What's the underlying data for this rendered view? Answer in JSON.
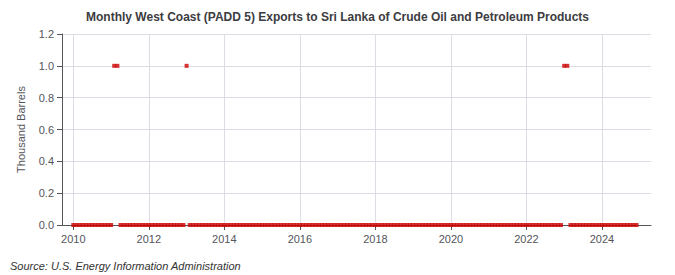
{
  "chart_data": {
    "type": "scatter",
    "title": "Monthly West Coast (PADD 5) Exports to Sri Lanka of Crude Oil and Petroleum Products",
    "ylabel": "Thousand Barrels",
    "annotations": [
      "Source: U.S. Energy Information Administration"
    ],
    "color": "#cc0000",
    "marker": "square",
    "grid": true,
    "xlim": [
      2009.7,
      2025.3
    ],
    "xticks": [
      2010,
      2012,
      2014,
      2016,
      2018,
      2020,
      2022,
      2024
    ],
    "ylim": [
      0,
      1.2
    ],
    "yticks": [
      {
        "value": 0.0,
        "label": "0.0"
      },
      0.2,
      0.4,
      0.6,
      0.8,
      {
        "value": 1.0,
        "label": "1.0"
      },
      1.2
    ],
    "x": [
      2010.0,
      2010.083,
      2010.167,
      2010.25,
      2010.333,
      2010.417,
      2010.5,
      2010.583,
      2010.667,
      2010.75,
      2010.833,
      2010.917,
      2011.0,
      2011.083,
      2011.167,
      2011.25,
      2011.333,
      2011.417,
      2011.5,
      2011.583,
      2011.667,
      2011.75,
      2011.833,
      2011.917,
      2012.0,
      2012.083,
      2012.167,
      2012.25,
      2012.333,
      2012.417,
      2012.5,
      2012.583,
      2012.667,
      2012.75,
      2012.833,
      2012.917,
      2013.0,
      2013.083,
      2013.167,
      2013.25,
      2013.333,
      2013.417,
      2013.5,
      2013.583,
      2013.667,
      2013.75,
      2013.833,
      2013.917,
      2014.0,
      2014.083,
      2014.167,
      2014.25,
      2014.333,
      2014.417,
      2014.5,
      2014.583,
      2014.667,
      2014.75,
      2014.833,
      2014.917,
      2015.0,
      2015.083,
      2015.167,
      2015.25,
      2015.333,
      2015.417,
      2015.5,
      2015.583,
      2015.667,
      2015.75,
      2015.833,
      2015.917,
      2016.0,
      2016.083,
      2016.167,
      2016.25,
      2016.333,
      2016.417,
      2016.5,
      2016.583,
      2016.667,
      2016.75,
      2016.833,
      2016.917,
      2017.0,
      2017.083,
      2017.167,
      2017.25,
      2017.333,
      2017.417,
      2017.5,
      2017.583,
      2017.667,
      2017.75,
      2017.833,
      2017.917,
      2018.0,
      2018.083,
      2018.167,
      2018.25,
      2018.333,
      2018.417,
      2018.5,
      2018.583,
      2018.667,
      2018.75,
      2018.833,
      2018.917,
      2019.0,
      2019.083,
      2019.167,
      2019.25,
      2019.333,
      2019.417,
      2019.5,
      2019.583,
      2019.667,
      2019.75,
      2019.833,
      2019.917,
      2020.0,
      2020.083,
      2020.167,
      2020.25,
      2020.333,
      2020.417,
      2020.5,
      2020.583,
      2020.667,
      2020.75,
      2020.833,
      2020.917,
      2021.0,
      2021.083,
      2021.167,
      2021.25,
      2021.333,
      2021.417,
      2021.5,
      2021.583,
      2021.667,
      2021.75,
      2021.833,
      2021.917,
      2022.0,
      2022.083,
      2022.167,
      2022.25,
      2022.333,
      2022.417,
      2022.5,
      2022.583,
      2022.667,
      2022.75,
      2022.833,
      2022.917,
      2023.0,
      2023.083,
      2023.167,
      2023.25,
      2023.333,
      2023.417,
      2023.5,
      2023.583,
      2023.667,
      2023.75,
      2023.833,
      2023.917,
      2024.0,
      2024.083,
      2024.167,
      2024.25,
      2024.333,
      2024.417,
      2024.5,
      2024.583,
      2024.667,
      2024.75,
      2024.833,
      2024.917
    ],
    "values": [
      0.0,
      0.0,
      0.0,
      0.0,
      0.0,
      0.0,
      0.0,
      0.0,
      0.0,
      0.0,
      0.0,
      0.0,
      0.0,
      1.0,
      1.0,
      0.0,
      0.0,
      0.0,
      0.0,
      0.0,
      0.0,
      0.0,
      0.0,
      0.0,
      0.0,
      0.0,
      0.0,
      0.0,
      0.0,
      0.0,
      0.0,
      0.0,
      0.0,
      0.0,
      0.0,
      0.0,
      1.0,
      0.0,
      0.0,
      0.0,
      0.0,
      0.0,
      0.0,
      0.0,
      0.0,
      0.0,
      0.0,
      0.0,
      0.0,
      0.0,
      0.0,
      0.0,
      0.0,
      0.0,
      0.0,
      0.0,
      0.0,
      0.0,
      0.0,
      0.0,
      0.0,
      0.0,
      0.0,
      0.0,
      0.0,
      0.0,
      0.0,
      0.0,
      0.0,
      0.0,
      0.0,
      0.0,
      0.0,
      0.0,
      0.0,
      0.0,
      0.0,
      0.0,
      0.0,
      0.0,
      0.0,
      0.0,
      0.0,
      0.0,
      0.0,
      0.0,
      0.0,
      0.0,
      0.0,
      0.0,
      0.0,
      0.0,
      0.0,
      0.0,
      0.0,
      0.0,
      0.0,
      0.0,
      0.0,
      0.0,
      0.0,
      0.0,
      0.0,
      0.0,
      0.0,
      0.0,
      0.0,
      0.0,
      0.0,
      0.0,
      0.0,
      0.0,
      0.0,
      0.0,
      0.0,
      0.0,
      0.0,
      0.0,
      0.0,
      0.0,
      0.0,
      0.0,
      0.0,
      0.0,
      0.0,
      0.0,
      0.0,
      0.0,
      0.0,
      0.0,
      0.0,
      0.0,
      0.0,
      0.0,
      0.0,
      0.0,
      0.0,
      0.0,
      0.0,
      0.0,
      0.0,
      0.0,
      0.0,
      0.0,
      0.0,
      0.0,
      0.0,
      0.0,
      0.0,
      0.0,
      0.0,
      0.0,
      0.0,
      0.0,
      0.0,
      0.0,
      1.0,
      1.0,
      0.0,
      0.0,
      0.0,
      0.0,
      0.0,
      0.0,
      0.0,
      0.0,
      0.0,
      0.0,
      0.0,
      0.0,
      0.0,
      0.0,
      0.0,
      0.0,
      0.0,
      0.0,
      0.0,
      0.0,
      0.0,
      0.0
    ]
  }
}
